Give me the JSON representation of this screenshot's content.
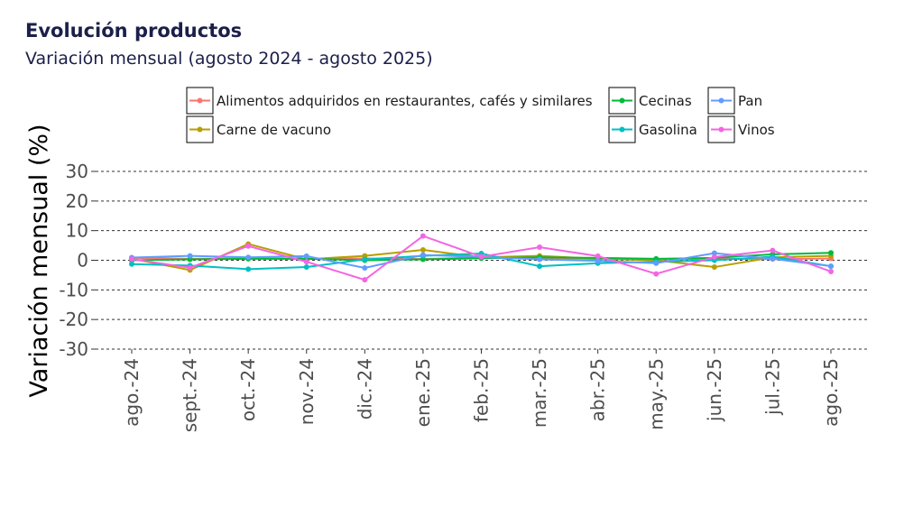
{
  "header": {
    "title": "Evolución productos",
    "subtitle": "Variación mensual (agosto 2024 - agosto 2025)"
  },
  "chart_data": {
    "type": "line",
    "title": "Evolución productos",
    "subtitle": "Variación mensual (agosto 2024 - agosto 2025)",
    "xlabel": "",
    "ylabel": "Variación mensual (%)",
    "ylim": [
      -30,
      30
    ],
    "yticks": [
      -30,
      -20,
      -10,
      0,
      10,
      20,
      30
    ],
    "grid": "horizontal dashed",
    "legend_position": "top",
    "categories": [
      "ago.-24",
      "sept.-24",
      "oct.-24",
      "nov.-24",
      "dic.-24",
      "ene.-25",
      "feb.-25",
      "mar.-25",
      "abr.-25",
      "may.-25",
      "jun.-25",
      "jul.-25",
      "ago.-25"
    ],
    "series": [
      {
        "name": "Alimentos adquiridos en restaurantes, cafés y similares",
        "color": "#f8766d",
        "values": [
          0.8,
          0.5,
          0.6,
          0.5,
          0.6,
          0.4,
          1.0,
          0.8,
          0.4,
          0.3,
          0.5,
          0.4,
          0.6
        ]
      },
      {
        "name": "Carne de vacuno",
        "color": "#b79f00",
        "values": [
          0.5,
          -3.3,
          5.5,
          0.3,
          1.5,
          3.5,
          1.0,
          1.5,
          0.5,
          0.0,
          -2.3,
          1.0,
          1.5
        ]
      },
      {
        "name": "Cecinas",
        "color": "#00ba38",
        "values": [
          0.0,
          0.3,
          0.5,
          0.5,
          0.0,
          0.3,
          0.7,
          1.0,
          0.8,
          0.5,
          0.8,
          2.0,
          2.5
        ]
      },
      {
        "name": "Gasolina",
        "color": "#00bfc4",
        "values": [
          -1.3,
          -1.8,
          -3.0,
          -2.3,
          0.3,
          1.5,
          2.3,
          -2.0,
          -1.0,
          -0.5,
          0.0,
          1.2,
          -2.0
        ]
      },
      {
        "name": "Pan",
        "color": "#619cff",
        "values": [
          0.9,
          1.5,
          1.0,
          1.4,
          -2.6,
          1.8,
          1.1,
          0.3,
          -0.2,
          -1.0,
          2.4,
          0.5,
          -2.0
        ]
      },
      {
        "name": "Vinos",
        "color": "#f564e3",
        "values": [
          0.4,
          -2.5,
          4.8,
          -0.5,
          -6.6,
          8.2,
          1.2,
          4.4,
          1.4,
          -4.6,
          1.1,
          3.3,
          -3.8
        ]
      }
    ]
  }
}
